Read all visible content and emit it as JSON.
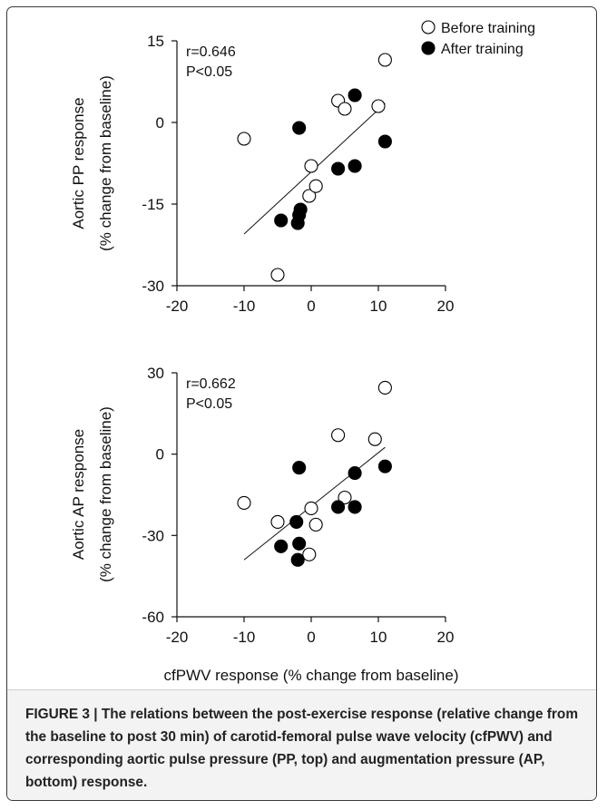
{
  "chart_data": [
    {
      "type": "scatter",
      "title": "",
      "ylabel_lines": [
        "Aortic PP response",
        "(% change from baseline)"
      ],
      "xlim": [
        -20,
        20
      ],
      "ylim": [
        -30,
        15
      ],
      "xticks": [
        "-20",
        "-10",
        "0",
        "10",
        "20"
      ],
      "yticks": [
        "15",
        "0",
        "-15",
        "-30"
      ],
      "annotation": [
        "r=0.646",
        "P<0.05"
      ],
      "legend": [
        "Before training",
        "After training"
      ],
      "trendline": [
        [
          -10,
          -20.5
        ],
        [
          11,
          3.5
        ]
      ],
      "series": [
        {
          "name": "Before training",
          "marker": "open-circle",
          "points": [
            [
              -10,
              -3
            ],
            [
              -5,
              -28
            ],
            [
              0,
              -8
            ],
            [
              -0.3,
              -13.5
            ],
            [
              0.7,
              -11.7
            ],
            [
              4,
              4
            ],
            [
              5,
              2.5
            ],
            [
              10,
              3
            ],
            [
              11,
              11.5
            ]
          ]
        },
        {
          "name": "After training",
          "marker": "filled-circle",
          "points": [
            [
              -4.5,
              -18
            ],
            [
              -2,
              -18.5
            ],
            [
              -1.8,
              -17
            ],
            [
              -1.6,
              -16
            ],
            [
              -1.8,
              -1
            ],
            [
              4,
              -8.5
            ],
            [
              6.5,
              -8
            ],
            [
              6.5,
              5
            ],
            [
              11,
              -3.5
            ]
          ]
        }
      ]
    },
    {
      "type": "scatter",
      "title": "",
      "ylabel_lines": [
        "Aortic AP response",
        "(% change from baseline)"
      ],
      "xlabel": "cfPWV response (% change from baseline)",
      "xlim": [
        -20,
        20
      ],
      "ylim": [
        -60,
        30
      ],
      "xticks": [
        "-20",
        "-10",
        "0",
        "10",
        "20"
      ],
      "yticks": [
        "30",
        "0",
        "-30",
        "-60"
      ],
      "annotation": [
        "r=0.662",
        "P<0.05"
      ],
      "trendline": [
        [
          -10,
          -39
        ],
        [
          11,
          2.5
        ]
      ],
      "series": [
        {
          "name": "Before training",
          "marker": "open-circle",
          "points": [
            [
              -10,
              -18
            ],
            [
              -5,
              -25
            ],
            [
              -0.3,
              -37
            ],
            [
              0,
              -20
            ],
            [
              0.7,
              -26
            ],
            [
              4,
              7
            ],
            [
              5,
              -16
            ],
            [
              9.5,
              5.5
            ],
            [
              11,
              24.5
            ]
          ]
        },
        {
          "name": "After training",
          "marker": "filled-circle",
          "points": [
            [
              -4.5,
              -34
            ],
            [
              -2.2,
              -25
            ],
            [
              -2,
              -39
            ],
            [
              -1.8,
              -33
            ],
            [
              -1.8,
              -5
            ],
            [
              4,
              -19.5
            ],
            [
              6.5,
              -19.5
            ],
            [
              6.5,
              -7
            ],
            [
              11,
              -4.5
            ]
          ]
        }
      ]
    }
  ],
  "caption": "FIGURE 3 | The relations between the post-exercise response (relative change from the baseline to post 30 min) of carotid-femoral pulse wave velocity (cfPWV) and corresponding aortic pulse pressure (PP, top) and augmentation pressure (AP, bottom) response."
}
